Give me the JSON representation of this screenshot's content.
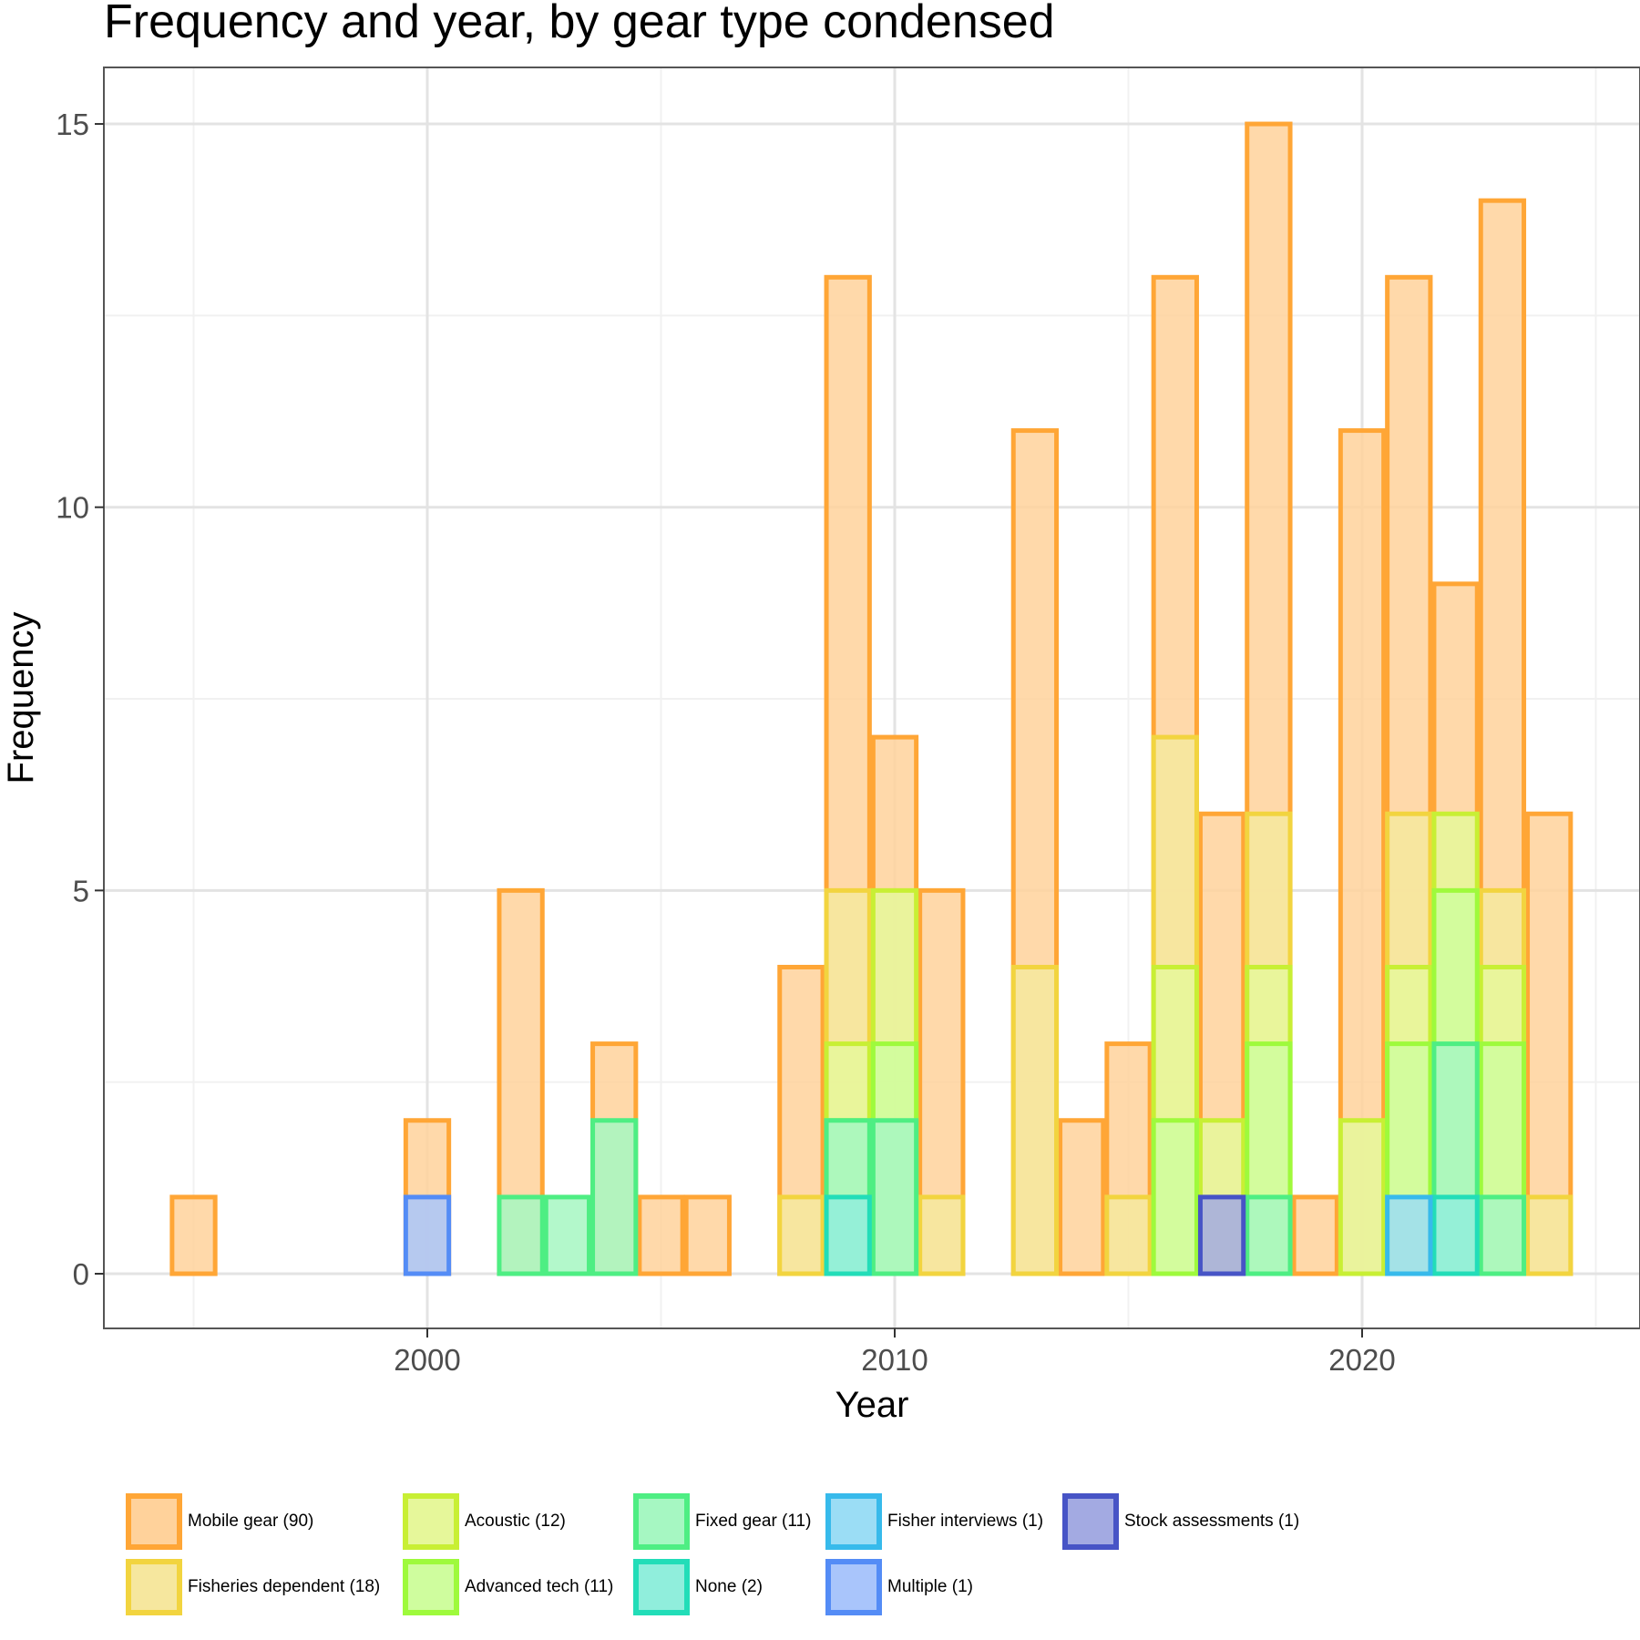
{
  "chart_data": {
    "type": "bar",
    "title": "Frequency and year, by gear type condensed",
    "xlabel": "Year",
    "ylabel": "Frequency",
    "xlim": [
      1994.1,
      2025.9
    ],
    "ylim": [
      -0.75,
      15.75
    ],
    "xticks": [
      2000,
      2010,
      2020
    ],
    "yticks": [
      0,
      5,
      10,
      15
    ],
    "grid": true,
    "legend_position": "bottom",
    "series": [
      {
        "name": "Mobile gear (90)",
        "fill": "#FFD29B",
        "stroke": "#FFA636",
        "points": [
          [
            1995,
            1
          ],
          [
            2000,
            2
          ],
          [
            2002,
            5
          ],
          [
            2004,
            3
          ],
          [
            2005,
            1
          ],
          [
            2006,
            1
          ],
          [
            2008,
            4
          ],
          [
            2009,
            13
          ],
          [
            2010,
            7
          ],
          [
            2011,
            5
          ],
          [
            2013,
            11
          ],
          [
            2014,
            2
          ],
          [
            2015,
            3
          ],
          [
            2016,
            13
          ],
          [
            2017,
            6
          ],
          [
            2018,
            15
          ],
          [
            2019,
            1
          ],
          [
            2020,
            11
          ],
          [
            2021,
            13
          ],
          [
            2022,
            9
          ],
          [
            2023,
            14
          ],
          [
            2024,
            6
          ]
        ]
      },
      {
        "name": "Fisheries dependent (18)",
        "fill": "#F6E79E",
        "stroke": "#F2D43F",
        "points": [
          [
            2008,
            1
          ],
          [
            2009,
            5
          ],
          [
            2011,
            1
          ],
          [
            2013,
            4
          ],
          [
            2015,
            1
          ],
          [
            2016,
            7
          ],
          [
            2018,
            6
          ],
          [
            2021,
            6
          ],
          [
            2023,
            5
          ],
          [
            2024,
            1
          ]
        ]
      },
      {
        "name": "Acoustic (12)",
        "fill": "#E6F79A",
        "stroke": "#C8EF34",
        "points": [
          [
            2009,
            3
          ],
          [
            2010,
            5
          ],
          [
            2016,
            4
          ],
          [
            2017,
            2
          ],
          [
            2018,
            4
          ],
          [
            2020,
            2
          ],
          [
            2021,
            4
          ],
          [
            2022,
            6
          ],
          [
            2023,
            4
          ]
        ]
      },
      {
        "name": "Advanced tech (11)",
        "fill": "#CFFD9E",
        "stroke": "#9EFA3C",
        "points": [
          [
            2009,
            2
          ],
          [
            2010,
            3
          ],
          [
            2016,
            2
          ],
          [
            2018,
            3
          ],
          [
            2021,
            3
          ],
          [
            2022,
            5
          ],
          [
            2023,
            3
          ]
        ]
      },
      {
        "name": "Fixed gear (11)",
        "fill": "#A6F7C2",
        "stroke": "#4EEE83",
        "points": [
          [
            2002,
            1
          ],
          [
            2003,
            1
          ],
          [
            2004,
            2
          ],
          [
            2009,
            2
          ],
          [
            2010,
            2
          ],
          [
            2018,
            1
          ],
          [
            2022,
            3
          ],
          [
            2023,
            1
          ]
        ]
      },
      {
        "name": "None (2)",
        "fill": "#90EEDC",
        "stroke": "#22DDB8",
        "points": [
          [
            2009,
            1
          ],
          [
            2022,
            1
          ]
        ]
      },
      {
        "name": "Fisher interviews (1)",
        "fill": "#9BDDF5",
        "stroke": "#37BAEB",
        "points": [
          [
            2021,
            1
          ]
        ]
      },
      {
        "name": "Multiple (1)",
        "fill": "#A9C5FB",
        "stroke": "#548CF6",
        "points": [
          [
            2000,
            1
          ]
        ]
      },
      {
        "name": "Stock assessments (1)",
        "fill": "#A3AAE2",
        "stroke": "#4754C6",
        "points": [
          [
            2017,
            1
          ]
        ]
      }
    ]
  },
  "legend": {
    "items": [
      {
        "label": "Mobile gear (90)",
        "fill": "#FFD29B",
        "stroke": "#FFA636"
      },
      {
        "label": "Fisheries dependent (18)",
        "fill": "#F6E79E",
        "stroke": "#F2D43F"
      },
      {
        "label": "Acoustic (12)",
        "fill": "#E6F79A",
        "stroke": "#C8EF34"
      },
      {
        "label": "Advanced tech (11)",
        "fill": "#CFFD9E",
        "stroke": "#9EFA3C"
      },
      {
        "label": "Fixed gear (11)",
        "fill": "#A6F7C2",
        "stroke": "#4EEE83"
      },
      {
        "label": "None (2)",
        "fill": "#90EEDC",
        "stroke": "#22DDB8"
      },
      {
        "label": "Fisher interviews (1)",
        "fill": "#9BDDF5",
        "stroke": "#37BAEB"
      },
      {
        "label": "Multiple (1)",
        "fill": "#A9C5FB",
        "stroke": "#548CF6"
      },
      {
        "label": "Stock assessments (1)",
        "fill": "#A3AAE2",
        "stroke": "#4754C6"
      }
    ]
  },
  "colors": {
    "panel_border": "#555555",
    "grid_major": "#E3E3E3",
    "grid_minor": "#F1F1F1",
    "axis_text": "#4D4D4D"
  }
}
